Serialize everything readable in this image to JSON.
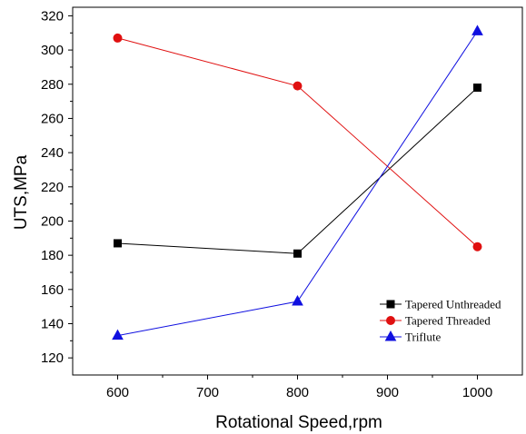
{
  "chart_data": {
    "type": "line",
    "title": "",
    "xlabel": "Rotational Speed,rpm",
    "ylabel": "UTS,MPa",
    "xlim": [
      550,
      1050
    ],
    "ylim": [
      110,
      325
    ],
    "xticks": [
      600,
      700,
      800,
      900,
      1000
    ],
    "yticks": [
      120,
      140,
      160,
      180,
      200,
      220,
      240,
      260,
      280,
      300,
      320
    ],
    "x": [
      600,
      800,
      1000
    ],
    "grid": false,
    "legend_position": "bottom-right",
    "series": [
      {
        "name": "Tapered Unthreaded",
        "values": [
          187,
          181,
          278
        ],
        "color": "#000000",
        "marker": "square"
      },
      {
        "name": "Tapered Threaded",
        "values": [
          307,
          279,
          185
        ],
        "color": "#e01010",
        "marker": "circle"
      },
      {
        "name": "Triflute",
        "values": [
          133,
          153,
          311
        ],
        "color": "#1010e0",
        "marker": "triangle"
      }
    ]
  }
}
